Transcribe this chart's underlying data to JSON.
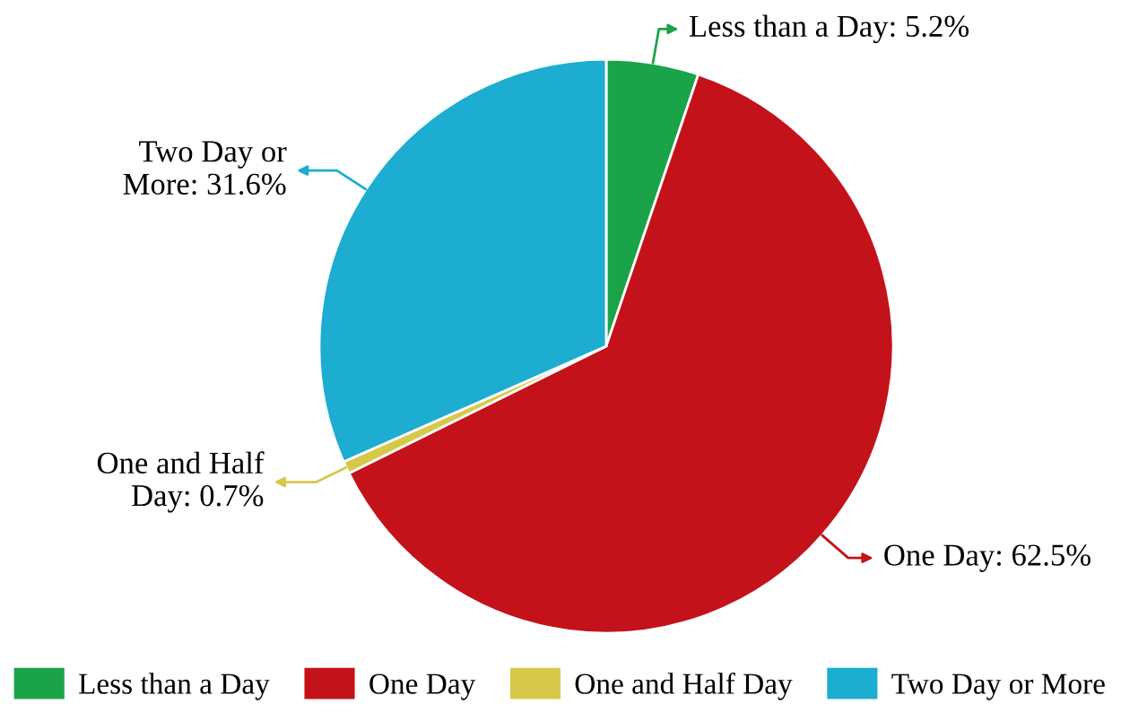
{
  "chart_data": {
    "type": "pie",
    "categories": [
      "Less than a Day",
      "One Day",
      "One and Half Day",
      "Two Day or More"
    ],
    "values": [
      5.2,
      62.5,
      0.7,
      31.6
    ],
    "colors": [
      "#1ba34a",
      "#c4121b",
      "#d6c94a",
      "#1cadd0"
    ],
    "value_labels": [
      "Less than a Day: 5.2%",
      "One Day: 62.5%",
      "One and Half\nDay: 0.7%",
      "Two Day or\nMore: 31.6%"
    ],
    "legend": "bottom"
  }
}
